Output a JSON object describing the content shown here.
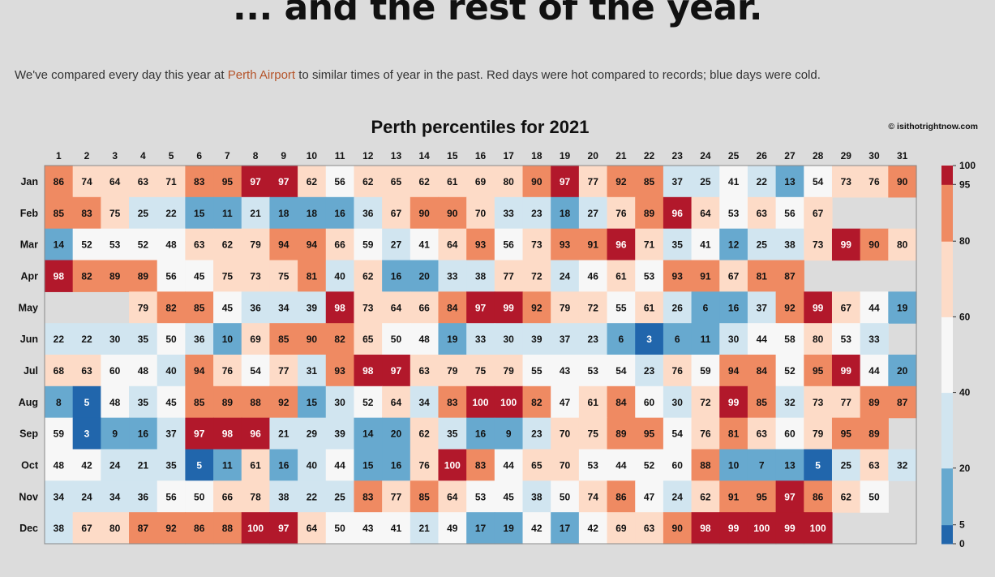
{
  "page": {
    "headline": "... and the rest of the year.",
    "intro_before": "We've compared every day this year at ",
    "intro_link": "Perth Airport",
    "intro_after": " to similar times of year in the past. Red days were hot compared to records; blue days were cold."
  },
  "chart_data": {
    "type": "heatmap",
    "title": "Perth percentiles for 2021",
    "credit": "© isithotrightnow.com",
    "columns": [
      "1",
      "2",
      "3",
      "4",
      "5",
      "6",
      "7",
      "8",
      "9",
      "10",
      "11",
      "12",
      "13",
      "14",
      "15",
      "16",
      "17",
      "18",
      "19",
      "20",
      "21",
      "22",
      "23",
      "24",
      "25",
      "26",
      "27",
      "28",
      "29",
      "30",
      "31"
    ],
    "rows": [
      "Jan",
      "Feb",
      "Mar",
      "Apr",
      "May",
      "Jun",
      "Jul",
      "Aug",
      "Sep",
      "Oct",
      "Nov",
      "Dec"
    ],
    "values": [
      [
        86,
        74,
        64,
        63,
        71,
        83,
        95,
        97,
        97,
        62,
        56,
        62,
        65,
        62,
        61,
        69,
        80,
        90,
        97,
        77,
        92,
        85,
        37,
        25,
        41,
        22,
        13,
        54,
        73,
        76,
        90
      ],
      [
        85,
        83,
        75,
        25,
        22,
        15,
        11,
        21,
        18,
        18,
        16,
        36,
        67,
        90,
        90,
        70,
        33,
        23,
        18,
        27,
        76,
        89,
        96,
        64,
        53,
        63,
        56,
        67,
        null,
        null,
        null
      ],
      [
        14,
        52,
        53,
        52,
        48,
        63,
        62,
        79,
        94,
        94,
        66,
        59,
        27,
        41,
        64,
        93,
        56,
        73,
        93,
        91,
        96,
        71,
        35,
        41,
        12,
        25,
        38,
        73,
        99,
        90,
        80
      ],
      [
        98,
        82,
        89,
        89,
        56,
        45,
        75,
        73,
        75,
        81,
        40,
        62,
        16,
        20,
        33,
        38,
        77,
        72,
        24,
        46,
        61,
        53,
        93,
        91,
        67,
        81,
        87,
        null,
        null,
        null,
        null
      ],
      [
        null,
        null,
        null,
        79,
        82,
        85,
        45,
        36,
        34,
        39,
        98,
        73,
        64,
        66,
        84,
        97,
        99,
        92,
        79,
        72,
        55,
        61,
        26,
        6,
        16,
        37,
        92,
        99,
        67,
        44,
        19
      ],
      [
        22,
        22,
        30,
        35,
        50,
        36,
        10,
        69,
        85,
        90,
        82,
        65,
        50,
        48,
        19,
        33,
        30,
        39,
        37,
        23,
        6,
        3,
        6,
        11,
        30,
        44,
        58,
        80,
        53,
        33,
        null
      ],
      [
        68,
        63,
        60,
        48,
        40,
        94,
        76,
        54,
        77,
        31,
        93,
        98,
        97,
        63,
        79,
        75,
        79,
        55,
        43,
        53,
        54,
        23,
        76,
        59,
        94,
        84,
        52,
        95,
        99,
        44,
        20
      ],
      [
        8,
        5,
        48,
        35,
        45,
        85,
        89,
        88,
        92,
        15,
        30,
        52,
        64,
        34,
        83,
        100,
        100,
        82,
        47,
        61,
        84,
        60,
        30,
        72,
        99,
        85,
        32,
        73,
        77,
        89,
        87
      ],
      [
        59,
        3,
        9,
        16,
        37,
        97,
        98,
        96,
        21,
        29,
        39,
        14,
        20,
        62,
        35,
        16,
        9,
        23,
        70,
        75,
        89,
        95,
        54,
        76,
        81,
        63,
        60,
        79,
        95,
        89,
        null
      ],
      [
        48,
        42,
        24,
        21,
        35,
        5,
        11,
        61,
        16,
        40,
        44,
        15,
        16,
        76,
        100,
        83,
        44,
        65,
        70,
        53,
        44,
        52,
        60,
        88,
        10,
        7,
        13,
        5,
        25,
        63,
        32
      ],
      [
        34,
        24,
        34,
        36,
        56,
        50,
        66,
        78,
        38,
        22,
        25,
        83,
        77,
        85,
        64,
        53,
        45,
        38,
        50,
        74,
        86,
        47,
        24,
        62,
        91,
        95,
        97,
        86,
        62,
        50,
        null
      ],
      [
        38,
        67,
        80,
        87,
        92,
        86,
        88,
        100,
        97,
        64,
        50,
        43,
        41,
        21,
        49,
        17,
        19,
        42,
        17,
        42,
        69,
        63,
        90,
        98,
        99,
        100,
        99,
        100,
        null,
        null,
        null
      ]
    ],
    "legend_ticks": [
      "100",
      "95",
      "80",
      "60",
      "40",
      "20",
      "5",
      "0"
    ],
    "scale": [
      {
        "min": 0,
        "max": 5,
        "color": "#2166ac"
      },
      {
        "min": 5,
        "max": 20,
        "color": "#67a9cf"
      },
      {
        "min": 20,
        "max": 40,
        "color": "#d1e5f0"
      },
      {
        "min": 40,
        "max": 60,
        "color": "#f7f7f7"
      },
      {
        "min": 60,
        "max": 80,
        "color": "#fddbc7"
      },
      {
        "min": 80,
        "max": 95,
        "color": "#ef8a62"
      },
      {
        "min": 95,
        "max": 100,
        "color": "#b2182b"
      }
    ]
  }
}
